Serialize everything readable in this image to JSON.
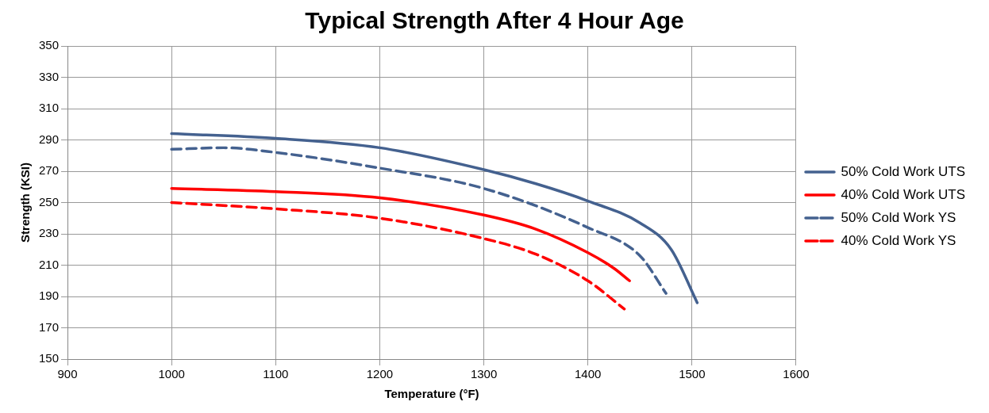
{
  "chart_data": {
    "type": "line",
    "title": "Typical Strength After 4 Hour Age",
    "xlabel": "Temperature (°F)",
    "ylabel": "Strength (KSI)",
    "xlim": [
      900,
      1600
    ],
    "xticks": [
      900,
      1000,
      1100,
      1200,
      1300,
      1400,
      1500,
      1600
    ],
    "ylim": [
      150,
      350
    ],
    "yticks": [
      150,
      170,
      190,
      210,
      230,
      250,
      270,
      290,
      310,
      330,
      350
    ],
    "grid": true,
    "legend": "right",
    "marker": "none",
    "series": [
      {
        "name": "50% Cold Work UTS",
        "color": "#44618f",
        "line_style": "solid",
        "x": [
          1000,
          1100,
          1200,
          1300,
          1350,
          1400,
          1450,
          1480,
          1505
        ],
        "values": [
          294,
          291,
          285,
          271,
          262,
          251,
          237,
          220,
          186
        ]
      },
      {
        "name": "40% Cold Work UTS",
        "color": "#ff0000",
        "line_style": "solid",
        "x": [
          1000,
          1100,
          1200,
          1300,
          1350,
          1400,
          1425,
          1440
        ],
        "values": [
          259,
          257,
          253,
          242,
          233,
          218,
          208,
          200
        ]
      },
      {
        "name": "50% Cold Work YS",
        "color": "#44618f",
        "line_style": "dashed",
        "x": [
          1000,
          1050,
          1100,
          1200,
          1300,
          1400,
          1450,
          1475
        ],
        "values": [
          284,
          285,
          282,
          272,
          259,
          234,
          216,
          192
        ]
      },
      {
        "name": "40% Cold Work YS",
        "color": "#ff0000",
        "line_style": "dashed",
        "x": [
          1000,
          1100,
          1200,
          1300,
          1350,
          1400,
          1435
        ],
        "values": [
          250,
          246,
          240,
          227,
          217,
          200,
          182
        ]
      }
    ]
  }
}
